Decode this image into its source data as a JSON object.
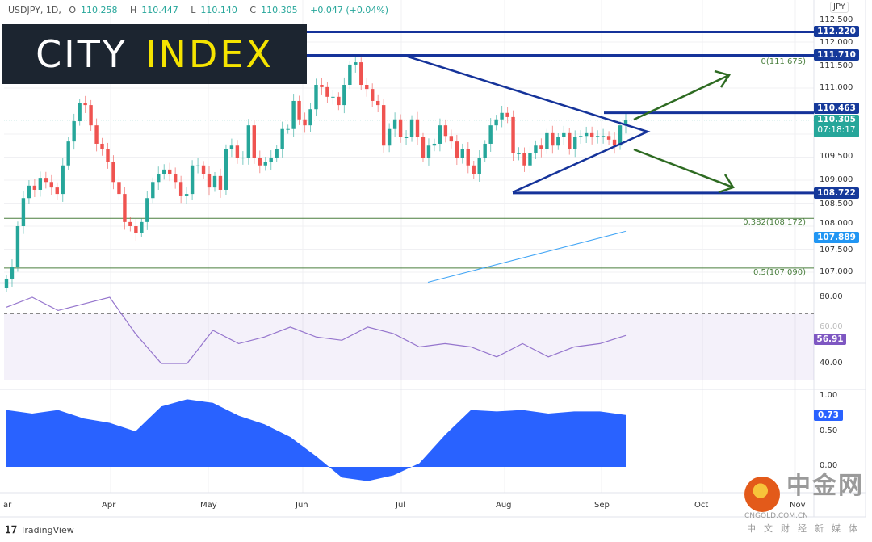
{
  "header": {
    "symbol": "USDJPY, 1D,",
    "open_label": "O",
    "open": "110.258",
    "high_label": "H",
    "high": "110.447",
    "low_label": "L",
    "low": "110.140",
    "close_label": "C",
    "close": "110.305",
    "change": "+0.047 (+0.04%)"
  },
  "logo": {
    "city": "CITY",
    "index": "INDEX"
  },
  "currency": "JPY",
  "price_axis": [
    "112.500",
    "112.000",
    "111.500",
    "111.000",
    "109.500",
    "109.000",
    "108.500",
    "108.000",
    "107.500",
    "107.000"
  ],
  "tags": {
    "l1": "112.220",
    "l2": "111.710",
    "l3": "110.463",
    "last": "110.305",
    "countdown": "07:18:17",
    "l4": "108.722",
    "sma": "107.889",
    "rsi": "56.91",
    "corr": "0.73"
  },
  "fib": {
    "f0": "0(111.675)",
    "f382": "0.382(108.172)",
    "f5": "0.5(107.090)"
  },
  "rsi_axis": [
    "80.00",
    "60.00",
    "40.00"
  ],
  "corr_axis": [
    "1.00",
    "0.50",
    "0.00"
  ],
  "dates": [
    "ar",
    "Apr",
    "May",
    "Jun",
    "Jul",
    "Aug",
    "Sep",
    "Oct",
    "Nov"
  ],
  "branding": {
    "tradingview": "TradingView",
    "wm_cn": "中金网",
    "wm_domain": "CNGOLD.COM.CN",
    "wm_sub": "中文财经新媒体"
  },
  "colors": {
    "up": "#26a69a",
    "down": "#ef5350",
    "drawing": "#15339a",
    "fib": "#4a7f3e",
    "arrow": "#2e6b22",
    "rsi": "#9575cd",
    "corr": "#2962ff",
    "sma": "#42a5f5"
  },
  "chart_data": {
    "type": "candlestick",
    "title": "USDJPY, 1D",
    "ylim": [
      106.7,
      112.8
    ],
    "closes": [
      106.86,
      107.12,
      108.0,
      108.61,
      108.88,
      108.79,
      109.05,
      108.96,
      108.84,
      108.7,
      109.32,
      109.84,
      110.28,
      110.67,
      110.63,
      110.19,
      109.79,
      109.67,
      109.4,
      108.96,
      108.7,
      108.09,
      108.0,
      107.86,
      108.09,
      108.61,
      108.96,
      109.14,
      109.23,
      109.14,
      108.96,
      108.65,
      108.7,
      109.32,
      109.32,
      109.14,
      108.84,
      109.09,
      108.79,
      109.67,
      109.75,
      109.49,
      109.49,
      110.19,
      109.49,
      109.32,
      109.4,
      109.49,
      109.67,
      110.11,
      110.11,
      110.72,
      110.32,
      110.19,
      110.54,
      111.07,
      111.02,
      110.81,
      110.81,
      110.63,
      111.07,
      111.51,
      111.56,
      111.07,
      110.98,
      110.72,
      110.63,
      109.75,
      110.11,
      110.32,
      109.93,
      109.93,
      110.32,
      109.93,
      109.49,
      109.75,
      109.79,
      110.19,
      109.96,
      109.84,
      109.49,
      109.67,
      109.32,
      109.14,
      109.49,
      109.79,
      110.19,
      110.32,
      110.46,
      110.37,
      109.58,
      109.58,
      109.32,
      109.58,
      109.75,
      109.67,
      110.02,
      109.75,
      109.93,
      110.02,
      109.67,
      109.93,
      109.96,
      110.02,
      109.93,
      109.96,
      109.96,
      109.88,
      109.75,
      110.19,
      110.305
    ],
    "levels": {
      "resistance_1": 112.22,
      "resistance_2": 111.71,
      "resistance_3": 110.463,
      "support": 108.722,
      "fib_0": 111.675,
      "fib_0382": 108.172,
      "fib_05": 107.09
    },
    "sma": {
      "start": 106.78,
      "end": 107.889
    },
    "rsi": {
      "ylim": [
        20,
        90
      ],
      "bands": [
        70,
        50,
        30
      ],
      "values": [
        74,
        80,
        72,
        76,
        80,
        58,
        40,
        40,
        60,
        52,
        56,
        62,
        56,
        54,
        62,
        58,
        50,
        52,
        50,
        44,
        52,
        44,
        50,
        52,
        56.91
      ]
    },
    "correlation": {
      "ylim": [
        -0.4,
        1.1
      ],
      "values": [
        0.8,
        0.75,
        0.8,
        0.68,
        0.62,
        0.5,
        0.85,
        0.95,
        0.9,
        0.72,
        0.6,
        0.42,
        0.15,
        -0.15,
        -0.2,
        -0.12,
        0.05,
        0.45,
        0.8,
        0.78,
        0.8,
        0.75,
        0.78,
        0.78,
        0.73
      ]
    }
  }
}
